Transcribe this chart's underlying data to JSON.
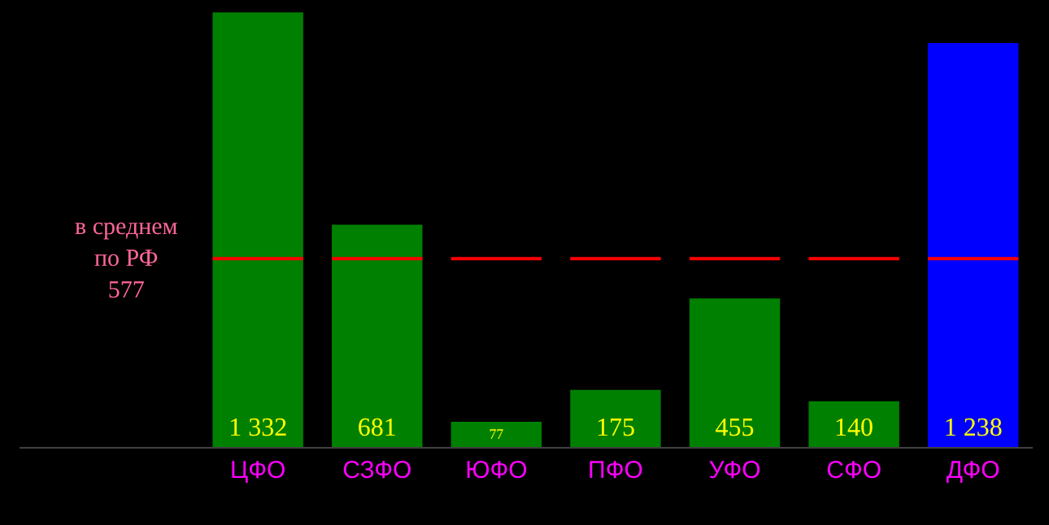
{
  "chart_data": {
    "type": "bar",
    "categories": [
      "ЦФО",
      "СЗФО",
      "ЮФО",
      "ПФО",
      "УФО",
      "СФО",
      "ДФО"
    ],
    "values": [
      1332,
      681,
      77,
      175,
      455,
      140,
      1238
    ],
    "value_labels": [
      "1 332",
      "681",
      "77",
      "175",
      "455",
      "140",
      "1 238"
    ],
    "colors": [
      "#008000",
      "#008000",
      "#008000",
      "#008000",
      "#008000",
      "#008000",
      "#0000ff"
    ],
    "ylim": [
      0,
      1370
    ],
    "tick_labels": "x",
    "grid": false,
    "legend": false,
    "ref_lines": [
      {
        "axis": "y",
        "value": 577,
        "label": "в среднем\nпо РФ\n577",
        "color": "#ff0000"
      }
    ]
  }
}
